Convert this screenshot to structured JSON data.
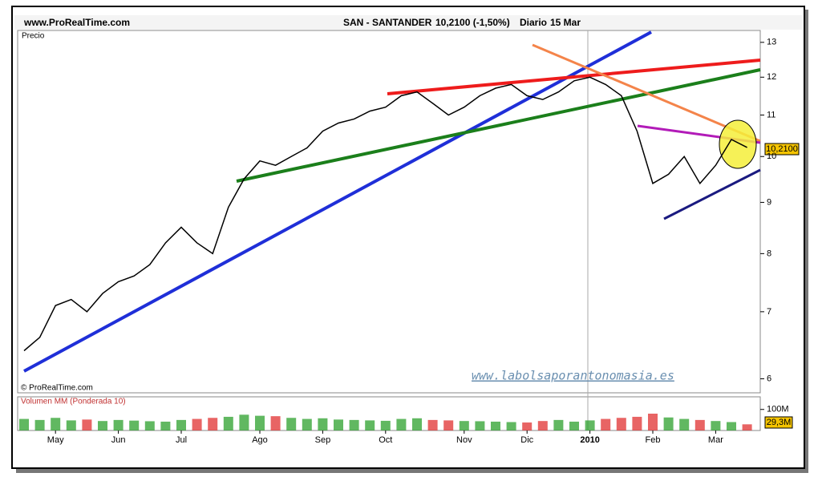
{
  "chart_data": {
    "type": "line",
    "site": "www.ProRealTime.com",
    "title": "SAN - SANTANDER",
    "quote": "10,2100 (-1,50%)",
    "period": "Diario",
    "date": "15 Mar",
    "panel_label": "Precio",
    "copyright": "© ProRealTime.com",
    "watermark": "www.labolsaporantonomasia.es",
    "volume_label": "Volumen MM (Ponderada 10)",
    "last_price_label": "10,2100",
    "last_volume_label": "29,3M",
    "categories": [
      null,
      null,
      "May",
      null,
      null,
      null,
      "Jun",
      null,
      null,
      null,
      "Jul",
      null,
      null,
      null,
      null,
      "Ago",
      null,
      null,
      null,
      "Sep",
      null,
      null,
      null,
      "Oct",
      null,
      null,
      null,
      null,
      "Nov",
      null,
      null,
      null,
      "Dic",
      null,
      null,
      null,
      "2010",
      null,
      null,
      null,
      "Feb",
      null,
      null,
      null,
      "Mar",
      null,
      null
    ],
    "series": [
      {
        "name": "SAN",
        "color": "#000000",
        "values": [
          6.4,
          6.6,
          7.1,
          7.2,
          7.0,
          7.3,
          7.5,
          7.6,
          7.8,
          8.2,
          8.5,
          8.2,
          8.0,
          8.9,
          9.5,
          9.9,
          9.8,
          10.0,
          10.2,
          10.6,
          10.8,
          10.9,
          11.1,
          11.2,
          11.5,
          11.6,
          11.3,
          11.0,
          11.2,
          11.5,
          11.7,
          11.8,
          11.5,
          11.4,
          11.6,
          11.9,
          12.0,
          11.8,
          11.5,
          10.6,
          9.4,
          9.6,
          10.0,
          9.4,
          9.8,
          10.4,
          10.21
        ]
      },
      {
        "name": "Volumen",
        "axis": "y2",
        "up_color": "#2ca02c",
        "down_color": "#e03030",
        "values": [
          55,
          50,
          60,
          48,
          52,
          45,
          50,
          47,
          44,
          42,
          50,
          55,
          60,
          65,
          75,
          70,
          68,
          60,
          55,
          58,
          52,
          50,
          48,
          46,
          55,
          58,
          50,
          48,
          45,
          44,
          42,
          40,
          38,
          45,
          50,
          42,
          48,
          55,
          60,
          65,
          80,
          62,
          55,
          50,
          45,
          40,
          29.3
        ]
      }
    ],
    "log_scale": true,
    "ylim": [
      5.81,
      13.36
    ],
    "yticks": [
      6,
      7,
      8,
      9,
      10,
      11,
      12,
      13
    ],
    "y2lim": [
      0,
      160
    ],
    "y2ticks": [
      {
        "value": 100,
        "label": "100M"
      }
    ]
  }
}
